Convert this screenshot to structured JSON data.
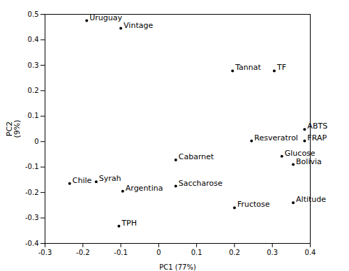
{
  "chart_data": {
    "type": "scatter",
    "xlabel": "PC1 (77%)",
    "ylabel": "PC2\n(9%)",
    "color": "#000000",
    "grid": false,
    "xlim": [
      -0.3,
      0.4
    ],
    "ylim": [
      -0.4,
      0.5
    ],
    "xticks": [
      -0.3,
      -0.2,
      -0.1,
      0,
      0.1,
      0.2,
      0.3,
      0.4
    ],
    "yticks": [
      -0.4,
      -0.3,
      -0.2,
      -0.1,
      0,
      0.1,
      0.2,
      0.3,
      0.4,
      0.5
    ],
    "points": [
      {
        "label": "Uruguay",
        "x": -0.19,
        "y": 0.475
      },
      {
        "label": "Vintage",
        "x": -0.1,
        "y": 0.445
      },
      {
        "label": "Tannat",
        "x": 0.195,
        "y": 0.278
      },
      {
        "label": "TF",
        "x": 0.305,
        "y": 0.278
      },
      {
        "label": "ABTS",
        "x": 0.385,
        "y": 0.048
      },
      {
        "label": "FRAP",
        "x": 0.385,
        "y": 0.003
      },
      {
        "label": "Resveratrol",
        "x": 0.245,
        "y": 0.003
      },
      {
        "label": "Cabarnet",
        "x": 0.045,
        "y": -0.072
      },
      {
        "label": "Glucose",
        "x": 0.325,
        "y": -0.058
      },
      {
        "label": "Bolivia",
        "x": 0.355,
        "y": -0.09
      },
      {
        "label": "Chile",
        "x": -0.235,
        "y": -0.165
      },
      {
        "label": "Syrah",
        "x": -0.165,
        "y": -0.158
      },
      {
        "label": "Argentina",
        "x": -0.095,
        "y": -0.195
      },
      {
        "label": "Saccharose",
        "x": 0.045,
        "y": -0.175
      },
      {
        "label": "Fructose",
        "x": 0.2,
        "y": -0.26
      },
      {
        "label": "Altitude",
        "x": 0.355,
        "y": -0.24
      },
      {
        "label": "TPH",
        "x": -0.105,
        "y": -0.332
      }
    ]
  }
}
